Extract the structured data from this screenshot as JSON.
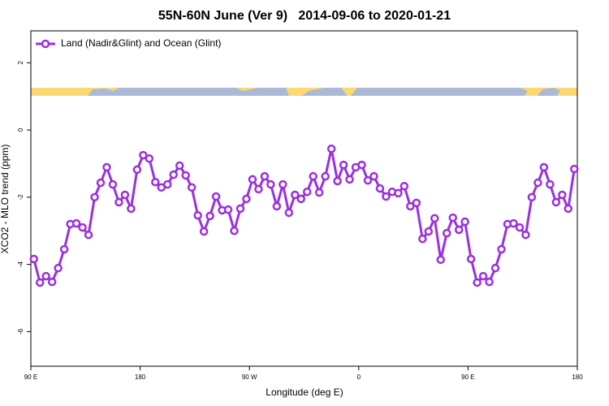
{
  "chart_data": {
    "type": "line",
    "title": "55N-60N June (Ver 9)   2014-09-06 to 2020-01-21",
    "x_label": "Longitude (deg E)",
    "y_label": "XCO2 - MLO trend (ppm)",
    "xlim": [
      90,
      540
    ],
    "xticks": [
      {
        "value": 90,
        "label": "90 E"
      },
      180,
      {
        "value": 270,
        "label": "90 W"
      },
      {
        "value": 360,
        "label": "0"
      },
      {
        "value": 450,
        "label": "90 E"
      },
      {
        "value": 540,
        "label": "180"
      }
    ],
    "ylim": [
      -7.03,
      2.95
    ],
    "yticks": [
      2,
      0,
      -2,
      -4,
      -6
    ],
    "legend": "top-left",
    "x": [
      92.5,
      97.5,
      102.5,
      107.5,
      112.5,
      117.5,
      122.5,
      127.5,
      132.5,
      137.5,
      142.5,
      147.5,
      152.5,
      157.5,
      162.5,
      167.5,
      172.5,
      177.5,
      182.5,
      187.5,
      192.5,
      197.5,
      202.5,
      207.5,
      212.5,
      217.5,
      222.5,
      227.5,
      232.5,
      237.5,
      242.5,
      247.5,
      252.5,
      257.5,
      262.5,
      267.5,
      272.5,
      277.5,
      282.5,
      287.5,
      292.5,
      297.5,
      302.5,
      307.5,
      312.5,
      317.5,
      322.5,
      327.5,
      332.5,
      337.5,
      342.5,
      347.5,
      352.5,
      357.5,
      362.5,
      367.5,
      372.5,
      377.5,
      382.5,
      387.5,
      392.5,
      397.5,
      402.5,
      407.5,
      412.5,
      417.5,
      422.5,
      427.5,
      432.5,
      437.5,
      442.5,
      447.5,
      452.5,
      457.5,
      462.5,
      467.5,
      472.5,
      477.5,
      482.5,
      487.5,
      492.5,
      497.5,
      502.5,
      507.5,
      512.5,
      517.5,
      522.5,
      527.5,
      532.5,
      537.5
    ],
    "series": [
      {
        "name": "Land (Nadir&Glint) and Ocean (Glint)",
        "color": "#9b30e0",
        "values": [
          -3.84,
          -4.54,
          -4.35,
          -4.52,
          -4.11,
          -3.55,
          -2.8,
          -2.78,
          -2.9,
          -3.12,
          -2.0,
          -1.57,
          -1.11,
          -1.62,
          -2.15,
          -1.93,
          -2.34,
          -1.18,
          -0.75,
          -0.85,
          -1.55,
          -1.71,
          -1.62,
          -1.33,
          -1.06,
          -1.35,
          -1.71,
          -2.54,
          -3.02,
          -2.56,
          -1.98,
          -2.39,
          -2.37,
          -3.0,
          -2.34,
          -2.05,
          -1.47,
          -1.76,
          -1.38,
          -1.62,
          -2.27,
          -1.62,
          -2.46,
          -1.93,
          -2.05,
          -1.84,
          -1.38,
          -1.86,
          -1.38,
          -0.56,
          -1.52,
          -1.04,
          -1.47,
          -1.11,
          -1.04,
          -1.5,
          -1.38,
          -1.74,
          -1.98,
          -1.84,
          -1.88,
          -1.67,
          -2.27,
          -2.17,
          -3.24,
          -3.02,
          -2.63,
          -3.86,
          -3.07,
          -2.61,
          -2.97,
          -2.73,
          -3.84,
          -4.54,
          -4.35,
          -4.52,
          -4.11,
          -3.55,
          -2.8,
          -2.78,
          -2.9,
          -3.12,
          -2.0,
          -1.57,
          -1.11,
          -1.62,
          -2.15,
          -1.93,
          -2.34,
          -1.16
        ]
      }
    ]
  }
}
